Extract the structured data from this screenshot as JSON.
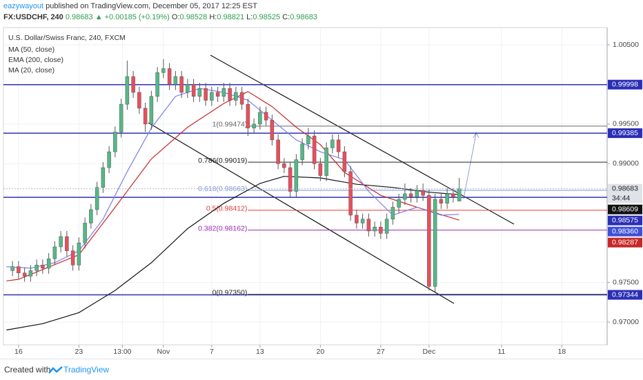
{
  "header": {
    "author": "eazywayout",
    "published": "published on TradingView.com, December 05, 2017 12:25 EST",
    "symbol": "FX:USDCHF, 240",
    "price": "0.98683",
    "change": "▲ +0.00185 (+0.19%)",
    "ohlc": [
      {
        "key": "O:",
        "val": "0.98528"
      },
      {
        "key": "H:",
        "val": "0.98821"
      },
      {
        "key": "L:",
        "val": "0.98525"
      },
      {
        "key": "C:",
        "val": "0.98683"
      }
    ]
  },
  "footer": {
    "created": "Created with",
    "brand": "TradingView"
  },
  "chart_data": {
    "type": "candlestick",
    "title": "U.S. Dollar/Swiss Franc, 240, FXCM",
    "up_color": "#53b987",
    "down_color": "#eb4d5c",
    "x": [
      -0.5,
      0,
      0.5,
      1,
      1.5,
      2,
      2.5,
      3,
      3.5,
      4,
      4.5,
      5,
      5.5,
      6,
      6.5,
      7,
      7.5,
      8,
      8.5,
      9,
      9.5,
      10,
      10.5,
      11,
      11.5,
      12,
      12.5,
      13,
      13.5,
      14,
      14.5,
      15,
      15.5,
      16,
      16.5,
      17,
      17.5,
      18,
      18.5,
      19,
      19.5,
      20,
      20.5,
      21,
      21.5,
      22,
      22.5,
      23,
      23.5,
      24,
      24.5,
      25,
      25.5,
      26,
      26.5,
      27,
      27.5,
      28,
      28.5,
      29,
      29.5,
      30,
      30.5,
      31,
      31.5,
      32,
      32.5,
      33,
      33.5,
      34,
      34.5,
      35,
      35.5,
      36,
      36.5
    ],
    "open": [
      0.9765,
      0.977,
      0.9762,
      0.9758,
      0.9765,
      0.9772,
      0.9768,
      0.978,
      0.9795,
      0.9808,
      0.979,
      0.9772,
      0.98,
      0.9825,
      0.9842,
      0.987,
      0.9895,
      0.9915,
      0.994,
      0.9975,
      1.001,
      0.999,
      0.997,
      0.995,
      0.9985,
      1.0015,
      1.002,
      1.0,
      1.001,
      0.999,
      1.0,
      0.9985,
      0.9995,
      0.998,
      0.999,
      0.9985,
      0.9995,
      0.998,
      0.999,
      0.9975,
      0.9945,
      0.995,
      0.9965,
      0.9955,
      0.993,
      0.99,
      0.9895,
      0.9865,
      0.9905,
      0.9925,
      0.9935,
      0.99,
      0.9885,
      0.992,
      0.993,
      0.9915,
      0.989,
      0.9835,
      0.9825,
      0.983,
      0.9815,
      0.982,
      0.9812,
      0.983,
      0.9845,
      0.9855,
      0.9862,
      0.9858,
      0.9866,
      0.986,
      0.9745,
      0.9855,
      0.985,
      0.9862,
      0.98528
    ],
    "high": [
      0.9777,
      0.9777,
      0.9769,
      0.9772,
      0.9779,
      0.9779,
      0.9787,
      0.9802,
      0.9815,
      0.9815,
      0.9797,
      0.9807,
      0.9832,
      0.9849,
      0.9877,
      0.9902,
      0.9922,
      0.9947,
      0.9982,
      1.003,
      1.0017,
      0.9997,
      0.9977,
      0.9992,
      1.0022,
      1.0032,
      1.0027,
      1.0017,
      1.0017,
      1.0007,
      1.0007,
      1.0002,
      1.0002,
      0.9997,
      0.9997,
      1.0002,
      1.0002,
      0.9997,
      0.9997,
      0.9982,
      0.9957,
      0.9972,
      0.9972,
      0.9962,
      0.9937,
      0.9907,
      0.9902,
      0.9912,
      0.9932,
      0.9945,
      0.9942,
      0.9907,
      0.9927,
      0.9937,
      0.9937,
      0.9922,
      0.9897,
      0.9842,
      0.9837,
      0.9837,
      0.9827,
      0.9827,
      0.9837,
      0.9852,
      0.9862,
      0.9875,
      0.9869,
      0.9873,
      0.9875,
      0.9867,
      0.9862,
      0.9862,
      0.9869,
      0.9869,
      0.98821
    ],
    "low": [
      0.9758,
      0.9755,
      0.9751,
      0.9751,
      0.9758,
      0.9761,
      0.9761,
      0.9773,
      0.9788,
      0.9783,
      0.9765,
      0.9765,
      0.9793,
      0.9818,
      0.9835,
      0.9863,
      0.9888,
      0.9908,
      0.9933,
      0.9968,
      0.9983,
      0.9963,
      0.994,
      0.9943,
      0.9978,
      1.0008,
      0.9993,
      0.9993,
      0.9983,
      0.9983,
      0.9978,
      0.9978,
      0.9973,
      0.9973,
      0.9978,
      0.9978,
      0.9973,
      0.9973,
      0.9968,
      0.9935,
      0.9938,
      0.9943,
      0.9948,
      0.9923,
      0.9893,
      0.9888,
      0.9858,
      0.9858,
      0.9898,
      0.9918,
      0.9893,
      0.9878,
      0.9878,
      0.9913,
      0.9908,
      0.9883,
      0.9828,
      0.9818,
      0.9818,
      0.9808,
      0.9808,
      0.9805,
      0.9805,
      0.9823,
      0.9838,
      0.9848,
      0.9851,
      0.9851,
      0.9853,
      0.974,
      0.9738,
      0.9843,
      0.9843,
      0.9851,
      0.98525
    ],
    "close": [
      0.977,
      0.9762,
      0.9758,
      0.9765,
      0.9772,
      0.9768,
      0.978,
      0.9795,
      0.9808,
      0.979,
      0.9772,
      0.98,
      0.9825,
      0.9842,
      0.987,
      0.9895,
      0.9915,
      0.994,
      0.9975,
      1.001,
      0.999,
      0.997,
      0.995,
      0.9985,
      1.0015,
      1.002,
      1.0,
      1.001,
      0.999,
      1.0,
      0.9985,
      0.9995,
      0.998,
      0.999,
      0.9985,
      0.9995,
      0.998,
      0.999,
      0.9975,
      0.9945,
      0.995,
      0.9965,
      0.9955,
      0.993,
      0.99,
      0.9895,
      0.9865,
      0.9905,
      0.9925,
      0.9935,
      0.99,
      0.9885,
      0.992,
      0.993,
      0.9915,
      0.989,
      0.9835,
      0.9825,
      0.983,
      0.9815,
      0.982,
      0.9812,
      0.983,
      0.9845,
      0.9855,
      0.9862,
      0.9858,
      0.9866,
      0.986,
      0.9745,
      0.9855,
      0.985,
      0.9862,
      0.9858,
      0.98683
    ],
    "series": [
      {
        "name": "MA (50, close)",
        "color": "#c62828",
        "x": [
          -1,
          0,
          5,
          8,
          11,
          14,
          17,
          19,
          21,
          23,
          25,
          27,
          30,
          33,
          36.5
        ],
        "values": [
          0.9752,
          0.9754,
          0.9785,
          0.9845,
          0.9906,
          0.9946,
          0.9976,
          0.9991,
          0.9972,
          0.9946,
          0.9924,
          0.9889,
          0.986,
          0.9845,
          0.98287
        ]
      },
      {
        "name": "EMA (200, close)",
        "color": "#111111",
        "x": [
          -1,
          2,
          5,
          8,
          11,
          14,
          17,
          20,
          22,
          25,
          28,
          31,
          34,
          36.5
        ],
        "values": [
          0.969,
          0.9698,
          0.9712,
          0.974,
          0.9775,
          0.9818,
          0.985,
          0.9875,
          0.9884,
          0.9882,
          0.9874,
          0.987,
          0.9864,
          0.98609
        ]
      },
      {
        "name": "MA (20, close)",
        "color": "#7b7ee8",
        "x": [
          -1,
          1,
          3,
          5,
          7,
          9,
          11,
          13,
          15,
          17,
          19,
          21,
          23,
          25,
          27,
          29,
          31,
          33,
          35,
          36.5
        ],
        "values": [
          0.977,
          0.9768,
          0.9775,
          0.979,
          0.983,
          0.989,
          0.9945,
          0.9985,
          0.9995,
          0.999,
          0.998,
          0.9955,
          0.993,
          0.9915,
          0.9905,
          0.9865,
          0.9835,
          0.9845,
          0.9835,
          0.9836
        ]
      }
    ],
    "xlim": [
      -1.25,
      48.75
    ],
    "xticks": [
      {
        "value": 0,
        "label": "16"
      },
      {
        "value": 5,
        "label": "23"
      },
      {
        "value": 8.6,
        "label": "13:00"
      },
      {
        "value": 12,
        "label": "Nov"
      },
      {
        "value": 16,
        "label": "7"
      },
      {
        "value": 20,
        "label": "13"
      },
      {
        "value": 25,
        "label": "20"
      },
      {
        "value": 30,
        "label": "27"
      },
      {
        "value": 34,
        "label": "Dec"
      },
      {
        "value": 40,
        "label": "11"
      },
      {
        "value": 45,
        "label": "18"
      }
    ],
    "ylim": [
      0.96713,
      1.00718
    ],
    "yticks": [
      {
        "value": 1.005,
        "label": "1.00500"
      },
      {
        "value": 0.995,
        "label": "0.99500"
      },
      {
        "value": 0.99,
        "label": "0.99000"
      },
      {
        "value": 0.975,
        "label": "0.97500"
      },
      {
        "value": 0.97,
        "label": "0.97000"
      }
    ],
    "grid": true,
    "levels": [
      {
        "value": 0.99998,
        "label": "0.99998",
        "color": "#2b2fb5"
      },
      {
        "value": 0.99385,
        "label": "0.99385",
        "color": "#2b2fb5"
      },
      {
        "value": 0.98575,
        "label": "0.98575",
        "color": "#2b2fb5"
      },
      {
        "value": 0.97344,
        "label": "0.97344",
        "color": "#2b2fb5"
      }
    ],
    "fib": [
      {
        "value": 0.99474,
        "label": "1(0.99474)",
        "color": "#666666"
      },
      {
        "value": 0.99019,
        "label": "0.786(0.99019)",
        "color": "#222222"
      },
      {
        "value": 0.98663,
        "label": "0.618(0.98663)",
        "color": "#7d97dd"
      },
      {
        "value": 0.98412,
        "label": "0.5(0.98412)",
        "color": "#e53935"
      },
      {
        "value": 0.98162,
        "label": "0.382(0.98162)",
        "color": "#9c27b0"
      },
      {
        "value": 0.9735,
        "label": "0(0.97350)",
        "color": "#222222"
      }
    ],
    "price_labels": [
      {
        "value": 0.98683,
        "label": "0.98683",
        "color": "#dfe2e8"
      },
      {
        "value": 0.98609,
        "label": "0.98609",
        "color": "#111111"
      },
      {
        "value": 0.9836,
        "label": "0.98360",
        "color": "#3f51d8"
      },
      {
        "value": 0.98287,
        "label": "0.98287",
        "color": "#c62828"
      }
    ],
    "countdown": "34:44"
  }
}
